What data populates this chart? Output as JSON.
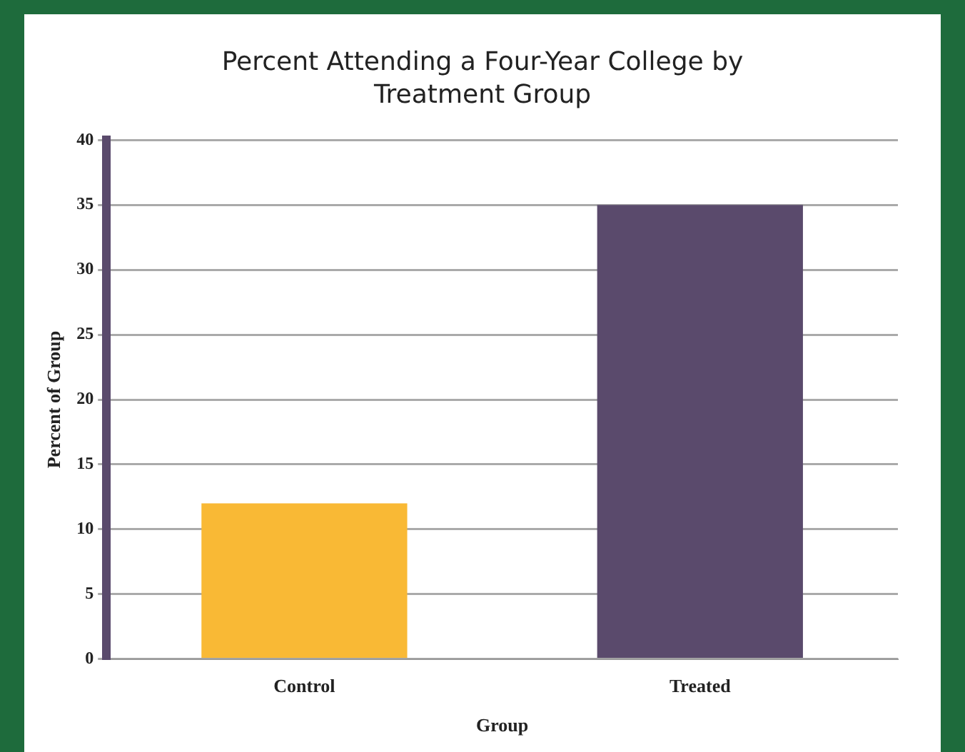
{
  "chart_data": {
    "type": "bar",
    "title": "Percent Attending a Four-Year College by Treatment Group",
    "xlabel": "Group",
    "ylabel": "Percent of Group",
    "categories": [
      "Control",
      "Treated"
    ],
    "values": [
      12,
      35
    ],
    "colors": [
      "#f9b935",
      "#5a4a6c"
    ],
    "ylim": [
      0,
      40
    ],
    "yticks": [
      0,
      5,
      10,
      15,
      20,
      25,
      30,
      35,
      40
    ],
    "grid": "y",
    "legend": false
  }
}
